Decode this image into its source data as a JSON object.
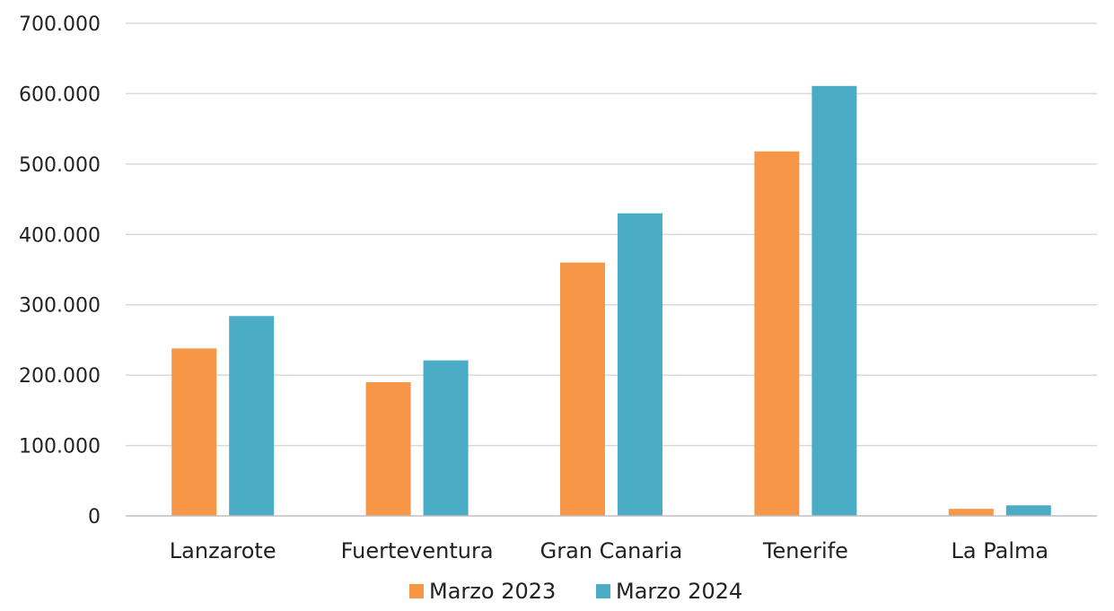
{
  "chart_data": {
    "type": "bar",
    "title": "",
    "xlabel": "",
    "ylabel": "",
    "categories": [
      "Lanzarote",
      "Fuerteventura",
      "Gran Canaria",
      "Tenerife",
      "La Palma"
    ],
    "series": [
      {
        "name": "Marzo 2023",
        "color": "#F79646",
        "values": [
          238000,
          190000,
          360000,
          518000,
          10000
        ]
      },
      {
        "name": "Marzo 2024",
        "color": "#4BACC6",
        "values": [
          284000,
          221000,
          430000,
          611000,
          15000
        ]
      }
    ],
    "ylim": [
      0,
      700000
    ],
    "yticks": [
      0,
      100000,
      200000,
      300000,
      400000,
      500000,
      600000,
      700000
    ],
    "ytick_labels": [
      "0",
      "100.000",
      "200.000",
      "300.000",
      "400.000",
      "500.000",
      "600.000",
      "700.000"
    ],
    "grid": true,
    "legend_position": "bottom"
  }
}
